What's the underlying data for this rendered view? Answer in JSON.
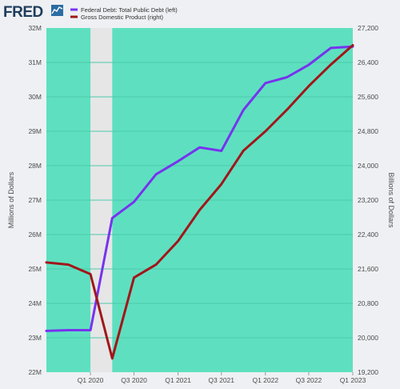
{
  "logo": {
    "text": "FRED"
  },
  "chart_data": {
    "type": "line",
    "dual_axis": true,
    "x_ticks": [
      "Q1 2020",
      "Q3 2020",
      "Q1 2021",
      "Q3 2021",
      "Q1 2022",
      "Q3 2022",
      "Q1 2023"
    ],
    "left_axis": {
      "label": "Millions of Dollars",
      "ylim": [
        22,
        32
      ],
      "tick_values": [
        22,
        23,
        24,
        25,
        26,
        27,
        28,
        29,
        30,
        31,
        32
      ],
      "tick_labels": [
        "22M",
        "23M",
        "24M",
        "25M",
        "26M",
        "27M",
        "28M",
        "29M",
        "30M",
        "31M",
        "32M"
      ]
    },
    "right_axis": {
      "label": "Billions of Dollars",
      "ylim": [
        19200,
        27200
      ],
      "tick_values": [
        19200,
        20000,
        20800,
        21600,
        22400,
        23200,
        24000,
        24800,
        25600,
        26400,
        27200
      ],
      "tick_labels": [
        "19,200",
        "20,000",
        "20,800",
        "21,600",
        "22,400",
        "23,200",
        "24,000",
        "24,800",
        "25,600",
        "26,400",
        "27,200"
      ]
    },
    "recession_shading": {
      "from": "2020-01-01",
      "to": "2020-04-01"
    },
    "grid": true,
    "legend_placement": "top-left",
    "background_color": "#5ee0c0",
    "series": [
      {
        "name": "Federal Debt: Total Public Debt (left)",
        "axis": "left",
        "color": "#7733ee",
        "x": [
          "2019-07-01",
          "2019-10-01",
          "2020-01-01",
          "2020-04-01",
          "2020-07-01",
          "2020-10-01",
          "2021-01-01",
          "2021-04-01",
          "2021-07-01",
          "2021-10-01",
          "2022-01-01",
          "2022-04-01",
          "2022-07-01",
          "2022-10-01",
          "2023-01-01"
        ],
        "y": [
          23.2,
          23.22,
          23.22,
          26.48,
          26.95,
          27.75,
          28.13,
          28.53,
          28.43,
          29.62,
          30.4,
          30.57,
          30.93,
          31.42,
          31.46
        ]
      },
      {
        "name": "Gross Domestic Product (right)",
        "axis": "right",
        "color": "#a1161a",
        "x": [
          "2019-07-01",
          "2019-10-01",
          "2020-01-01",
          "2020-04-01",
          "2020-07-01",
          "2020-10-01",
          "2021-01-01",
          "2021-04-01",
          "2021-07-01",
          "2021-10-01",
          "2022-01-01",
          "2022-04-01",
          "2022-07-01",
          "2022-10-01",
          "2023-01-01"
        ],
        "y": [
          21750,
          21700,
          21480,
          19520,
          21400,
          21700,
          22250,
          22970,
          23570,
          24350,
          24800,
          25300,
          25850,
          26350,
          26800
        ]
      }
    ]
  }
}
